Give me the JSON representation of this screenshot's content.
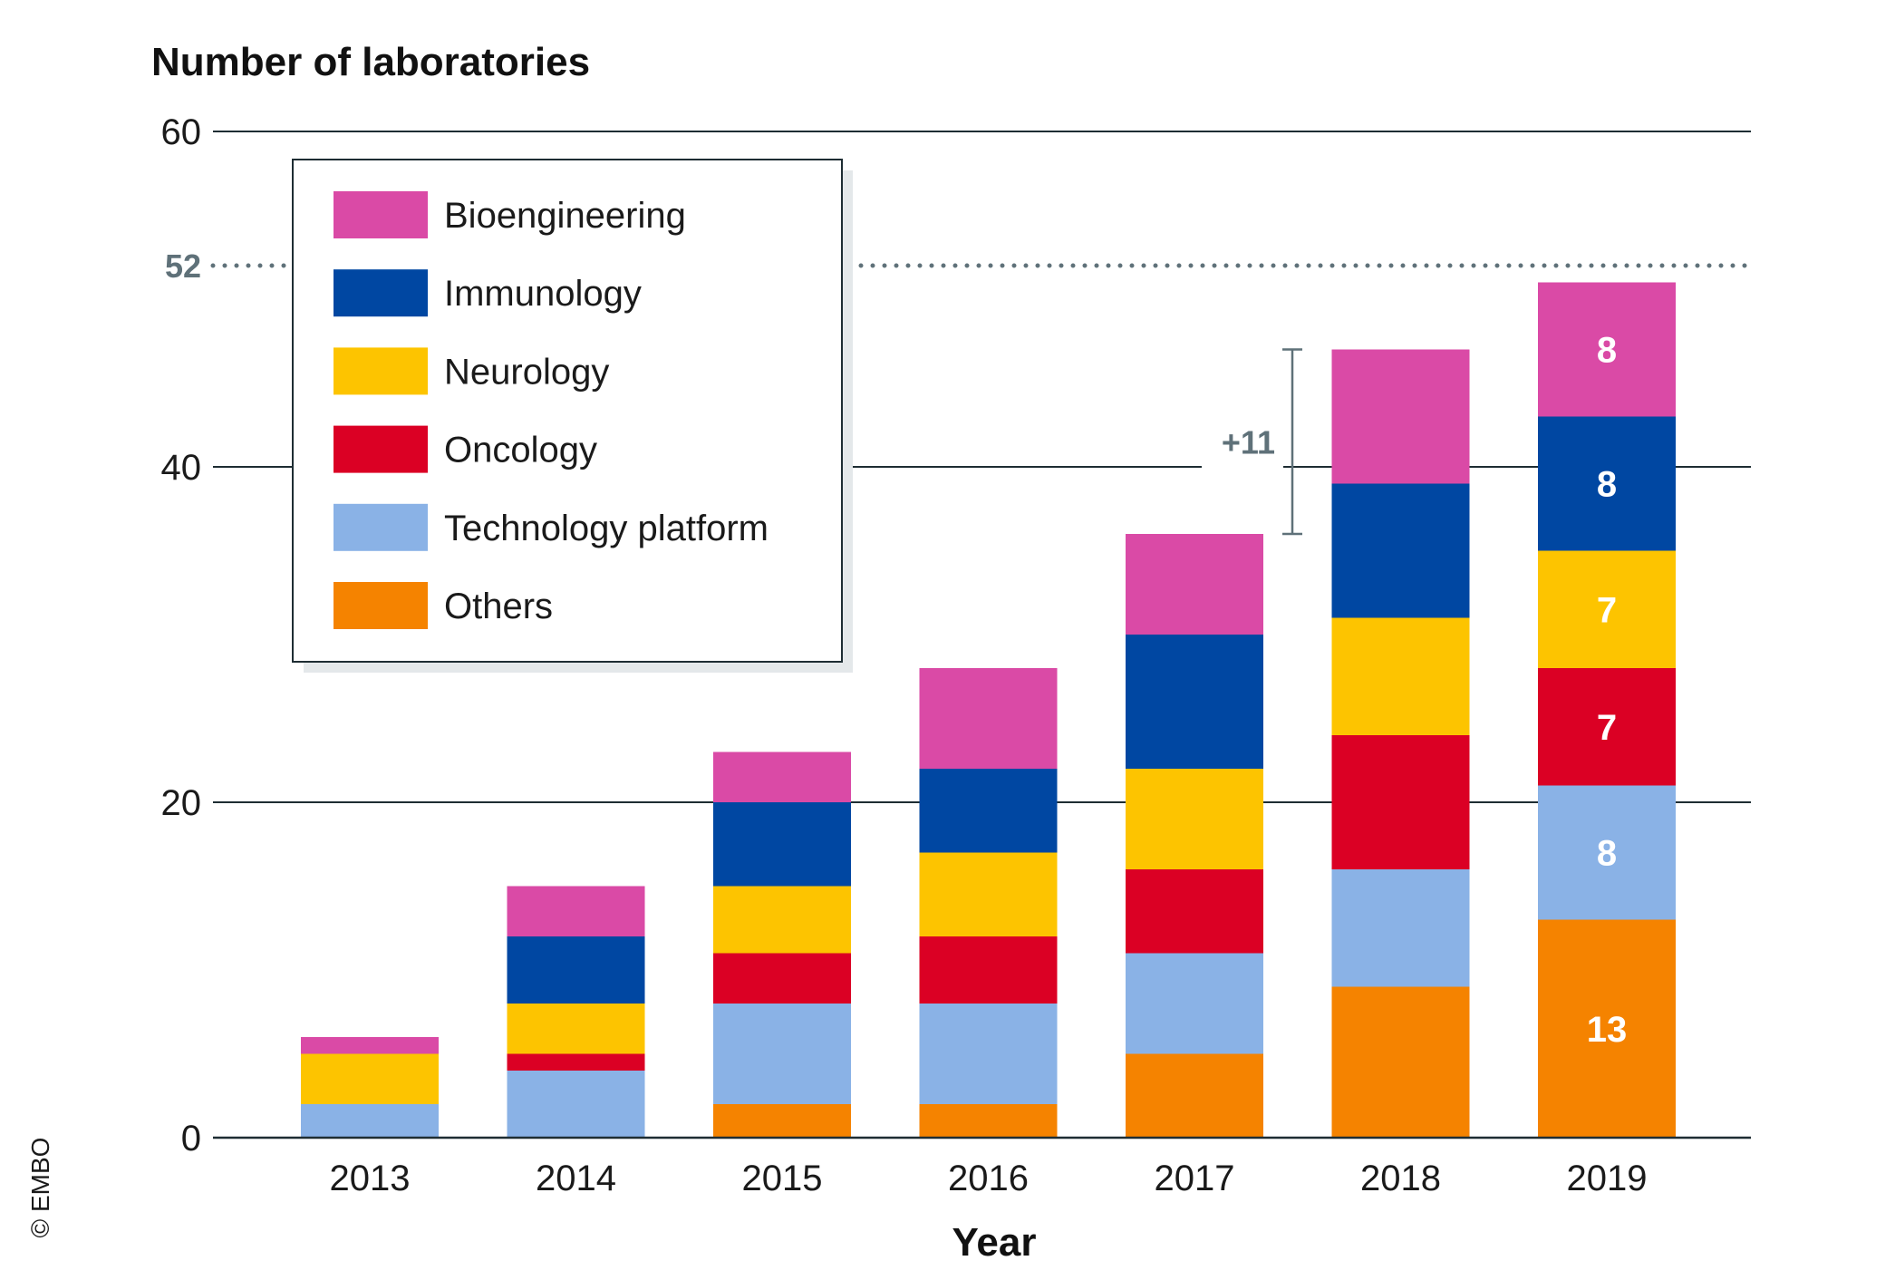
{
  "chart_data": {
    "type": "bar",
    "stacked": true,
    "title": "Number of laboratories",
    "xlabel": "Year",
    "ylabel": "",
    "ylim": [
      0,
      60
    ],
    "yticks": [
      0,
      20,
      40,
      60
    ],
    "grid": true,
    "legend_position": "top-left",
    "categories": [
      "2013",
      "2014",
      "2015",
      "2016",
      "2017",
      "2018",
      "2019"
    ],
    "series": [
      {
        "name": "Others",
        "color": "#f58300",
        "values": [
          0,
          0,
          2,
          2,
          5,
          9,
          13
        ]
      },
      {
        "name": "Technology platform",
        "color": "#8ab2e6",
        "values": [
          2,
          4,
          6,
          6,
          6,
          7,
          8
        ]
      },
      {
        "name": "Oncology",
        "color": "#db0024",
        "values": [
          0,
          1,
          3,
          4,
          5,
          8,
          7
        ]
      },
      {
        "name": "Neurology",
        "color": "#fdc400",
        "values": [
          3,
          3,
          4,
          5,
          6,
          7,
          7
        ]
      },
      {
        "name": "Immunology",
        "color": "#0047a2",
        "values": [
          0,
          4,
          5,
          5,
          8,
          8,
          8
        ]
      },
      {
        "name": "Bioengineering",
        "color": "#da4aa6",
        "values": [
          1,
          3,
          3,
          6,
          6,
          8,
          8
        ]
      }
    ],
    "data_labels": {
      "category": "2019",
      "values": [
        "13",
        "8",
        "7",
        "7",
        "8",
        "8"
      ]
    },
    "reference_line": {
      "value": 52,
      "label": "52",
      "color": "#5f7179"
    },
    "annotation": {
      "label": "+11",
      "from": 36,
      "to": 47,
      "color": "#5f7179"
    }
  },
  "copyright": "© EMBO"
}
